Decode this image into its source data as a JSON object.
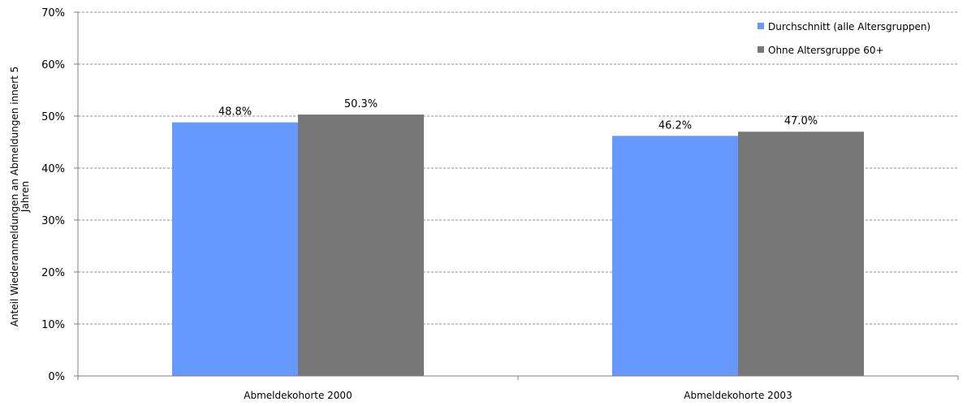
{
  "chart_data": {
    "type": "bar",
    "title": "",
    "ylabel_lines": [
      "Anteil Wiederanmeldungen an Abmeldungen innert 5",
      "Jahren"
    ],
    "xlabel": "",
    "categories": [
      "Abmeldekohorte 2000",
      "Abmeldekohorte 2003"
    ],
    "series": [
      {
        "name": "Durchschnitt (alle Altersgruppen)",
        "values": [
          48.8,
          46.2
        ],
        "labels": [
          "48.8%",
          "46.2%"
        ],
        "color": "#6699FF"
      },
      {
        "name": "Ohne Altersgruppe 60+",
        "values": [
          50.3,
          47.0
        ],
        "labels": [
          "50.3%",
          "47.0%"
        ],
        "color": "#777777"
      }
    ],
    "ylim": [
      0,
      70
    ],
    "yticks": [
      0,
      10,
      20,
      30,
      40,
      50,
      60,
      70
    ],
    "ytick_labels": [
      "0%",
      "10%",
      "20%",
      "30%",
      "40%",
      "50%",
      "60%",
      "70%"
    ],
    "grid": true,
    "legend_position": "top-right"
  }
}
